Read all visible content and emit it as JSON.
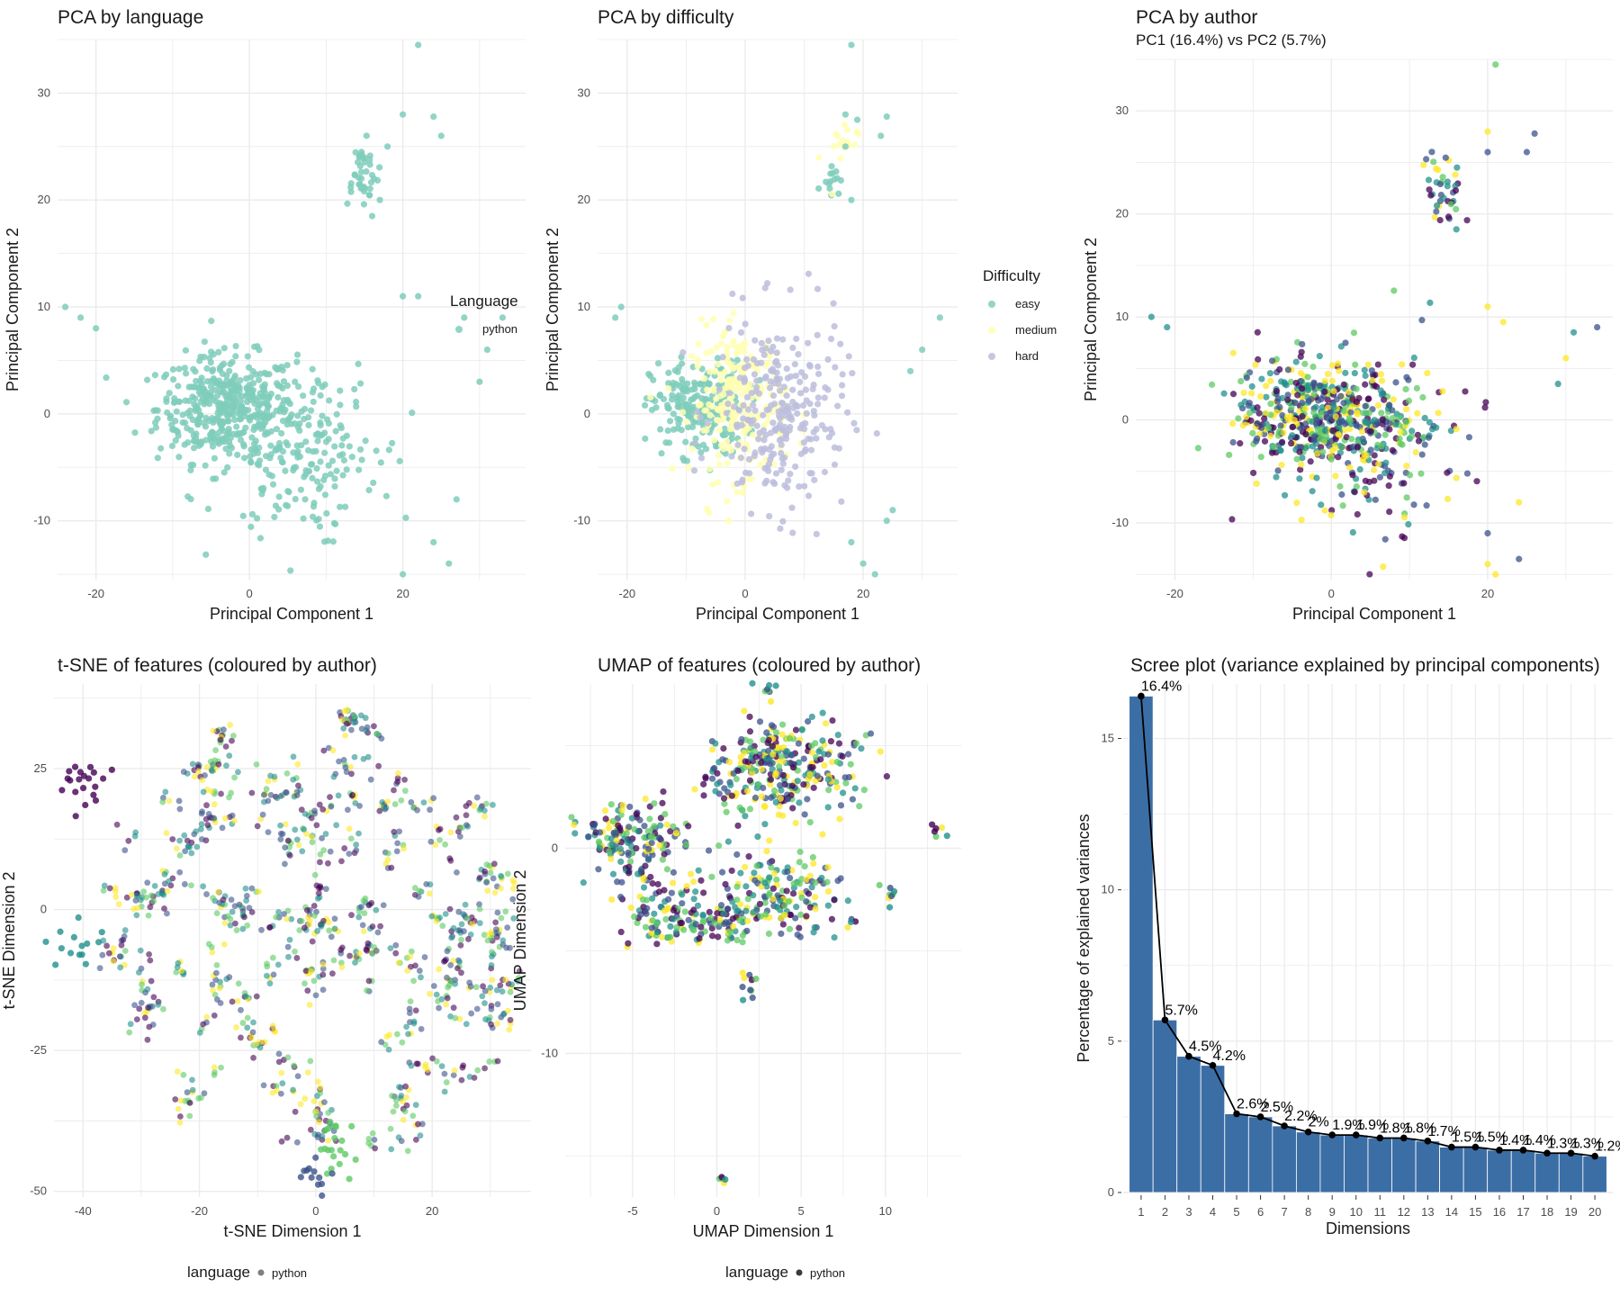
{
  "colors": {
    "python": "#7fcdbb",
    "easy": "#7fcdbb",
    "medium": "#ffffb2",
    "hard": "#bcbddc",
    "grid": "#ebebeb",
    "bar": "#3c6ea6",
    "viridis": [
      "#440154",
      "#3b528b",
      "#21908c",
      "#5dc963",
      "#fde725"
    ]
  },
  "panels": [
    {
      "id": "pca-language",
      "title": "PCA by language",
      "subtitle": "",
      "xlabel": "Principal Component 1",
      "ylabel": "Principal Component 2",
      "legend": {
        "title": "Language",
        "items": [
          {
            "label": "python",
            "color": "#7fcdbb"
          }
        ]
      }
    },
    {
      "id": "pca-difficulty",
      "title": "PCA by difficulty",
      "subtitle": "",
      "xlabel": "Principal Component 1",
      "ylabel": "Principal Component 2",
      "legend": {
        "title": "Difficulty",
        "items": [
          {
            "label": "easy",
            "color": "#7fcdbb"
          },
          {
            "label": "medium",
            "color": "#ffffb2"
          },
          {
            "label": "hard",
            "color": "#bcbddc"
          }
        ]
      }
    },
    {
      "id": "pca-author",
      "title": "PCA by author",
      "subtitle": "PC1 (16.4%) vs PC2 (5.7%)",
      "xlabel": "Principal Component 1",
      "ylabel": "Principal Component 2"
    },
    {
      "id": "tsne",
      "title": "t-SNE of features (coloured by author)",
      "subtitle": "",
      "xlabel": "t-SNE Dimension 1",
      "ylabel": "t-SNE Dimension 2",
      "legend": {
        "title": "language",
        "items": [
          {
            "label": "python",
            "color": "#7f7f7f"
          }
        ]
      }
    },
    {
      "id": "umap",
      "title": "UMAP of features (coloured by author)",
      "subtitle": "",
      "xlabel": "UMAP Dimension 1",
      "ylabel": "UMAP Dimension 2",
      "legend": {
        "title": "language",
        "items": [
          {
            "label": "python",
            "color": "#3a3a3a"
          }
        ]
      }
    },
    {
      "id": "scree",
      "title": "Scree plot (variance explained by principal components)",
      "subtitle": "",
      "xlabel": "Dimensions",
      "ylabel": "Percentage of explained variances"
    }
  ],
  "chart_data": [
    {
      "type": "scatter",
      "panel": "pca-language",
      "xlim": [
        -25,
        36
      ],
      "ylim": [
        -15.5,
        35
      ],
      "xticks": [
        -20,
        0,
        20
      ],
      "yticks": [
        -10,
        0,
        10,
        20,
        30
      ],
      "series": [
        {
          "name": "python",
          "color": "#7fcdbb"
        }
      ],
      "clusters": [
        {
          "cx": -3,
          "cy": 0.5,
          "sx": 4.5,
          "sy": 2.5,
          "n": 420,
          "spread": "core"
        },
        {
          "cx": 5,
          "cy": -3,
          "sx": 5.5,
          "sy": 4,
          "n": 200,
          "spread": "wide"
        },
        {
          "cx": 14.5,
          "cy": 22.5,
          "sx": 1.2,
          "sy": 1.5,
          "n": 40,
          "spread": "tight"
        }
      ],
      "outliers": [
        [
          -24,
          10
        ],
        [
          -22,
          9
        ],
        [
          -20,
          8
        ],
        [
          22,
          34.5
        ],
        [
          20,
          28
        ],
        [
          24,
          27.8
        ],
        [
          25,
          26
        ],
        [
          18,
          25
        ],
        [
          16,
          18.5
        ],
        [
          20,
          11
        ],
        [
          22,
          11
        ],
        [
          27,
          -8
        ],
        [
          24,
          -12
        ],
        [
          20,
          -15
        ],
        [
          26,
          -14
        ],
        [
          33,
          9
        ],
        [
          31,
          6
        ],
        [
          28,
          9
        ],
        [
          30,
          3
        ],
        [
          17,
          20
        ]
      ]
    },
    {
      "type": "scatter",
      "panel": "pca-difficulty",
      "xlim": [
        -25,
        36
      ],
      "ylim": [
        -15.5,
        35
      ],
      "xticks": [
        -20,
        0,
        20
      ],
      "yticks": [
        -10,
        0,
        10,
        20,
        30
      ],
      "series": [
        {
          "name": "easy",
          "color": "#7fcdbb"
        },
        {
          "name": "medium",
          "color": "#ffffb2"
        },
        {
          "name": "hard",
          "color": "#bcbddc"
        }
      ],
      "clusters": [
        {
          "series": "easy",
          "cx": -8,
          "cy": 0.5,
          "sx": 4,
          "sy": 2.2,
          "n": 220
        },
        {
          "series": "medium",
          "cx": -1,
          "cy": 1,
          "sx": 4,
          "sy": 3.5,
          "n": 230
        },
        {
          "series": "hard",
          "cx": 6,
          "cy": 0,
          "sx": 5.5,
          "sy": 4.5,
          "n": 260
        },
        {
          "series": "easy",
          "cx": 14.5,
          "cy": 22.3,
          "sx": 0.8,
          "sy": 0.8,
          "n": 14
        },
        {
          "series": "medium",
          "cx": 16,
          "cy": 24,
          "sx": 1.5,
          "sy": 2,
          "n": 16
        }
      ],
      "outliers": [
        [
          18,
          34.5
        ],
        [
          17,
          28
        ],
        [
          19,
          27.5
        ],
        [
          24,
          27.8
        ],
        [
          23,
          26
        ],
        [
          18,
          20
        ],
        [
          17,
          25
        ],
        [
          -22,
          9
        ],
        [
          -21,
          10
        ],
        [
          33,
          9
        ],
        [
          30,
          6
        ],
        [
          22,
          -15
        ],
        [
          20,
          -14
        ],
        [
          18,
          -12
        ],
        [
          24,
          -10
        ],
        [
          25,
          -9
        ],
        [
          28,
          4
        ]
      ]
    },
    {
      "type": "scatter",
      "panel": "pca-author",
      "xlim": [
        -25,
        36
      ],
      "ylim": [
        -15.5,
        35
      ],
      "xticks": [
        -20,
        0,
        20
      ],
      "yticks": [
        -10,
        0,
        10,
        20,
        30
      ],
      "palette": "viridis",
      "clusters": [
        {
          "cx": -2,
          "cy": 0.5,
          "sx": 5,
          "sy": 2.8,
          "n": 460
        },
        {
          "cx": 6,
          "cy": -2.5,
          "sx": 5.5,
          "sy": 4.2,
          "n": 200
        },
        {
          "cx": 14.5,
          "cy": 22.5,
          "sx": 1.2,
          "sy": 1.5,
          "n": 40
        }
      ],
      "outliers": [
        [
          21,
          34.5
        ],
        [
          20,
          28
        ],
        [
          26,
          27.8
        ],
        [
          25,
          26
        ],
        [
          20,
          26
        ],
        [
          16,
          18.5
        ],
        [
          -23,
          10
        ],
        [
          -21,
          9
        ],
        [
          34,
          9
        ],
        [
          31,
          8.5
        ],
        [
          30,
          6
        ],
        [
          29,
          3.5
        ],
        [
          20,
          11
        ],
        [
          22,
          9.5
        ],
        [
          24,
          -8
        ],
        [
          21,
          -15
        ],
        [
          20,
          -14
        ],
        [
          24,
          -13.5
        ],
        [
          20,
          -11
        ]
      ]
    },
    {
      "type": "scatter",
      "panel": "tsne",
      "xlim": [
        -45,
        37
      ],
      "ylim": [
        -51,
        40
      ],
      "xticks": [
        -40,
        -20,
        0,
        20
      ],
      "yticks": [
        -50,
        -25,
        0,
        25
      ],
      "palette": "viridis",
      "shape": "disc",
      "blobs": [
        {
          "cx": -40,
          "cy": 22,
          "r": 2,
          "n": 20,
          "color": 0
        },
        {
          "cx": 4,
          "cy": -42,
          "r": 2.5,
          "n": 20,
          "color": 3
        },
        {
          "cx": 0,
          "cy": -47,
          "r": 1.5,
          "n": 12,
          "color": 1
        },
        {
          "cx": -41,
          "cy": -6,
          "r": 2.5,
          "n": 14,
          "color": 2
        }
      ]
    },
    {
      "type": "scatter",
      "panel": "umap",
      "xlim": [
        -9,
        14.5
      ],
      "ylim": [
        -17,
        8
      ],
      "xticks": [
        -5,
        0,
        5,
        10
      ],
      "yticks": [
        -10,
        0
      ],
      "palette": "viridis",
      "clusters": [
        {
          "cx": 3.8,
          "cy": 3.8,
          "sx": 2.2,
          "sy": 1.1,
          "n": 300
        },
        {
          "cx": -5,
          "cy": 0.5,
          "sx": 1.8,
          "sy": 0.9,
          "n": 160
        },
        {
          "cx": 3.5,
          "cy": -2.3,
          "sx": 2.0,
          "sy": 1.2,
          "n": 170
        },
        {
          "cx": -2.5,
          "cy": -3.5,
          "sx": 1.4,
          "sy": 0.8,
          "n": 70
        },
        {
          "cx": -4,
          "cy": -2.5,
          "sx": 0.8,
          "sy": 0.8,
          "n": 40
        },
        {
          "cx": 0.3,
          "cy": -3.5,
          "sx": 0.9,
          "sy": 0.5,
          "n": 45
        }
      ],
      "blobs": [
        {
          "cx": 3,
          "cy": 7.8,
          "r": 0.3,
          "n": 8
        },
        {
          "cx": 13,
          "cy": 0.8,
          "r": 0.2,
          "n": 6
        },
        {
          "cx": 10.3,
          "cy": -2.3,
          "r": 0.3,
          "n": 8
        },
        {
          "cx": 1.9,
          "cy": -6.6,
          "r": 0.4,
          "n": 10
        },
        {
          "cx": 0.3,
          "cy": -16.2,
          "r": 0.15,
          "n": 5
        },
        {
          "cx": 8,
          "cy": -3.8,
          "r": 0.3,
          "n": 4
        }
      ]
    },
    {
      "type": "bar",
      "panel": "scree",
      "categories": [
        "1",
        "2",
        "3",
        "4",
        "5",
        "6",
        "7",
        "8",
        "9",
        "10",
        "11",
        "12",
        "13",
        "14",
        "15",
        "16",
        "17",
        "18",
        "19",
        "20"
      ],
      "values": [
        16.4,
        5.7,
        4.5,
        4.2,
        2.6,
        2.5,
        2.2,
        2.0,
        1.9,
        1.9,
        1.8,
        1.8,
        1.7,
        1.5,
        1.5,
        1.4,
        1.4,
        1.3,
        1.3,
        1.2
      ],
      "labels": [
        "16.4%",
        "5.7%",
        "4.5%",
        "4.2%",
        "2.6%",
        "2.5%",
        "2.2%",
        "2%",
        "1.9%",
        "1.9%",
        "1.8%",
        "1.8%",
        "1.7%",
        "1.5%",
        "1.5%",
        "1.4%",
        "1.4%",
        "1.3%",
        "1.3%",
        "1.2%"
      ],
      "ylim": [
        0,
        16.8
      ],
      "yticks": [
        0,
        5,
        10,
        15
      ],
      "line": true
    }
  ]
}
